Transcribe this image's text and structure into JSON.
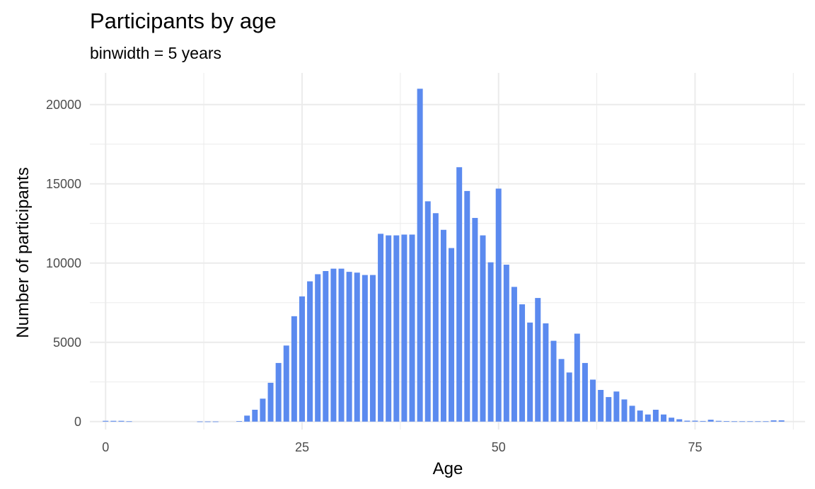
{
  "chart_data": {
    "type": "bar",
    "title": "Participants by age",
    "subtitle": "binwidth = 5 years",
    "xlabel": "Age",
    "ylabel": "Number of participants",
    "xlim": [
      -2,
      89
    ],
    "ylim": [
      -500,
      22000
    ],
    "x_ticks": [
      0,
      25,
      50,
      75
    ],
    "x_tick_labels": [
      "0",
      "25",
      "50",
      "75"
    ],
    "y_ticks": [
      0,
      5000,
      10000,
      15000,
      20000
    ],
    "y_tick_labels": [
      "0",
      "5000",
      "10000",
      "15000",
      "20000"
    ],
    "grid": true,
    "bar_color": "#5B8AEF",
    "x": [
      0,
      1,
      2,
      3,
      12,
      13,
      14,
      17,
      18,
      19,
      20,
      21,
      22,
      23,
      24,
      25,
      26,
      27,
      28,
      29,
      30,
      31,
      32,
      33,
      34,
      35,
      36,
      37,
      38,
      39,
      40,
      41,
      42,
      43,
      44,
      45,
      46,
      47,
      48,
      49,
      50,
      51,
      52,
      53,
      54,
      55,
      56,
      57,
      58,
      59,
      60,
      61,
      62,
      63,
      64,
      65,
      66,
      67,
      68,
      69,
      70,
      71,
      72,
      73,
      74,
      75,
      76,
      77,
      78,
      79,
      80,
      81,
      82,
      83,
      84,
      85,
      86
    ],
    "values": [
      50,
      50,
      50,
      20,
      10,
      10,
      10,
      30,
      380,
      750,
      1450,
      2450,
      3700,
      4800,
      6650,
      7900,
      8850,
      9300,
      9500,
      9650,
      9650,
      9450,
      9400,
      9250,
      9250,
      11850,
      11750,
      11750,
      11800,
      11800,
      21000,
      13900,
      13150,
      12100,
      10950,
      16050,
      14550,
      12850,
      11750,
      10050,
      14700,
      9900,
      8500,
      7400,
      6250,
      7800,
      6200,
      5100,
      3950,
      3100,
      5550,
      3700,
      2650,
      2000,
      1550,
      1900,
      1400,
      1000,
      700,
      450,
      750,
      450,
      250,
      150,
      60,
      60,
      40,
      120,
      50,
      30,
      20,
      20,
      20,
      20,
      20,
      80,
      80
    ]
  }
}
